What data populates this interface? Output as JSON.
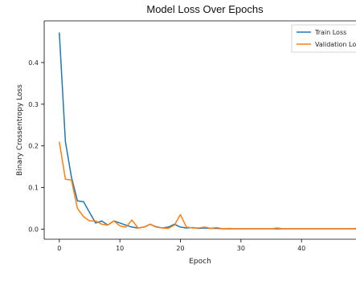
{
  "chart_data": {
    "type": "line",
    "title": "Model Loss Over Epochs",
    "xlabel": "Epoch",
    "ylabel": "Binary Crossentropy Loss",
    "xlim": [
      -2.5,
      49
    ],
    "ylim": [
      -0.024,
      0.5
    ],
    "xticks": [
      0,
      10,
      20,
      30,
      40
    ],
    "yticks": [
      0.0,
      0.1,
      0.2,
      0.3,
      0.4
    ],
    "ytick_labels": [
      "0.0",
      "0.1",
      "0.2",
      "0.3",
      "0.4"
    ],
    "legend_position": "top-right",
    "grid": false,
    "series": [
      {
        "name": "Train Loss",
        "color": "#1f77b4",
        "x": [
          0,
          1,
          2,
          3,
          4,
          5,
          6,
          7,
          8,
          9,
          10,
          11,
          12,
          13,
          14,
          15,
          16,
          17,
          18,
          19,
          20,
          21,
          22,
          23,
          24,
          25,
          26,
          27,
          28,
          29,
          30,
          31,
          32,
          33,
          34,
          35,
          36,
          37,
          38,
          39,
          40,
          41,
          42,
          43,
          44,
          45,
          46,
          47,
          48,
          49
        ],
        "values": [
          0.472,
          0.21,
          0.125,
          0.068,
          0.066,
          0.04,
          0.015,
          0.02,
          0.01,
          0.02,
          0.015,
          0.01,
          0.005,
          0.003,
          0.005,
          0.012,
          0.006,
          0.003,
          0.005,
          0.012,
          0.005,
          0.003,
          0.004,
          0.002,
          0.003,
          0.002,
          0.002,
          0.001,
          0.001,
          0.001,
          0.001,
          0.001,
          0.001,
          0.001,
          0.001,
          0.001,
          0.001,
          0.001,
          0.001,
          0.001,
          0.001,
          0.001,
          0.001,
          0.001,
          0.001,
          0.001,
          0.001,
          0.001,
          0.001,
          0.001
        ]
      },
      {
        "name": "Validation Lo",
        "color": "#ff7f0e",
        "x": [
          0,
          1,
          2,
          3,
          4,
          5,
          6,
          7,
          8,
          9,
          10,
          11,
          12,
          13,
          14,
          15,
          16,
          17,
          18,
          19,
          20,
          21,
          22,
          23,
          24,
          25,
          26,
          27,
          28,
          29,
          30,
          31,
          32,
          33,
          34,
          35,
          36,
          37,
          38,
          39,
          40,
          41,
          42,
          43,
          44,
          45,
          46,
          47,
          48,
          49
        ],
        "values": [
          0.21,
          0.12,
          0.118,
          0.05,
          0.03,
          0.02,
          0.02,
          0.012,
          0.01,
          0.02,
          0.008,
          0.005,
          0.022,
          0.003,
          0.005,
          0.012,
          0.005,
          0.003,
          0.002,
          0.01,
          0.035,
          0.005,
          0.003,
          0.003,
          0.005,
          0.002,
          0.004,
          0.001,
          0.002,
          0.001,
          0.001,
          0.001,
          0.001,
          0.001,
          0.001,
          0.001,
          0.003,
          0.001,
          0.001,
          0.001,
          0.001,
          0.001,
          0.001,
          0.001,
          0.001,
          0.001,
          0.001,
          0.001,
          0.001,
          0.002
        ]
      }
    ]
  }
}
